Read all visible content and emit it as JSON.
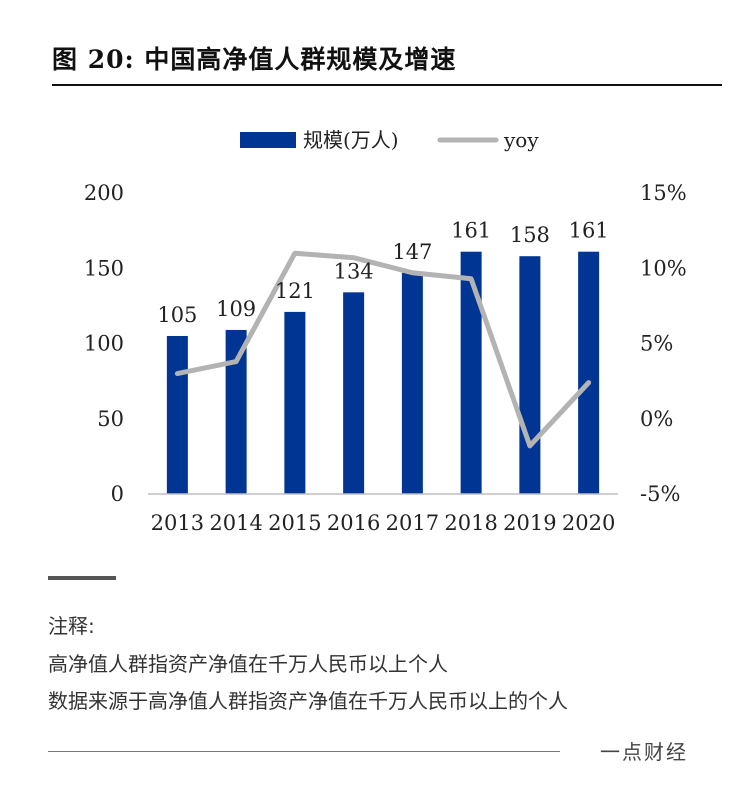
{
  "figure": {
    "title": "图 20: 中国高净值人群规模及增速"
  },
  "chart_data": {
    "type": "bar",
    "categories": [
      "2013",
      "2014",
      "2015",
      "2016",
      "2017",
      "2018",
      "2019",
      "2020"
    ],
    "series": [
      {
        "name": "规模(万人)",
        "kind": "bar",
        "axis": "left",
        "color": "#003594",
        "values": [
          105,
          109,
          121,
          134,
          147,
          161,
          158,
          161
        ]
      },
      {
        "name": "yoy",
        "kind": "line",
        "axis": "right",
        "color": "#b3b3b3",
        "values": [
          0.03,
          0.038,
          0.11,
          0.107,
          0.097,
          0.093,
          -0.018,
          0.024
        ]
      }
    ],
    "data_labels": [
      "105",
      "109",
      "121",
      "134",
      "147",
      "161",
      "158",
      "161"
    ],
    "y_left": {
      "lim": [
        0,
        200
      ],
      "ticks": [
        "0",
        "50",
        "100",
        "150",
        "200"
      ]
    },
    "y_right": {
      "lim": [
        -0.05,
        0.15
      ],
      "ticks": [
        "-5%",
        "0%",
        "5%",
        "10%",
        "15%"
      ]
    },
    "legend_position": "top-center",
    "grid": false
  },
  "notes": {
    "heading": "注释:",
    "line1": "高净值人群指资产净值在千万人民币以上个人",
    "line2": "数据来源于高净值人群指资产净值在千万人民币以上的个人"
  },
  "footer": {
    "brand": "一点财经"
  }
}
